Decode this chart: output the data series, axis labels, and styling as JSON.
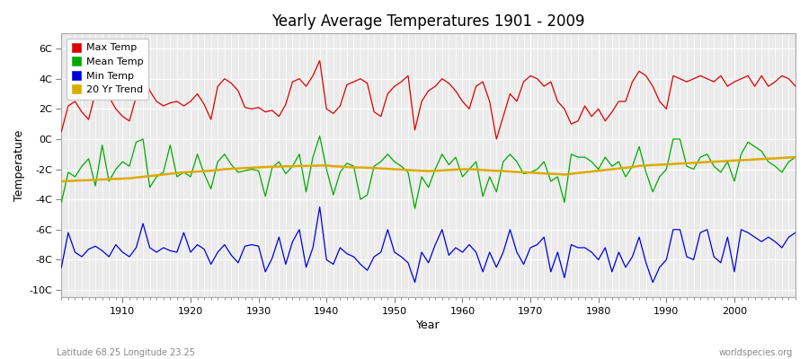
{
  "title": "Yearly Average Temperatures 1901 - 2009",
  "xlabel": "Year",
  "ylabel": "Temperature",
  "footnote_left": "Latitude 68.25 Longitude 23.25",
  "footnote_right": "worldspecies.org",
  "ylim": [
    -10.5,
    7
  ],
  "yticks": [
    -10,
    -8,
    -6,
    -4,
    -2,
    0,
    2,
    4,
    6
  ],
  "ytick_labels": [
    "-10C",
    "-8C",
    "-6C",
    "-4C",
    "-2C",
    "0C",
    "2C",
    "4C",
    "6C"
  ],
  "xstart": 1901,
  "xend": 2009,
  "legend": {
    "Max Temp": "#dd0000",
    "Mean Temp": "#00aa00",
    "Min Temp": "#0000dd",
    "20 Yr Trend": "#ddaa00"
  },
  "background_color": "#ffffff",
  "plot_bg_color": "#ebebeb",
  "max_temp": [
    0.5,
    2.2,
    2.5,
    1.8,
    1.3,
    3.1,
    3.4,
    2.8,
    2.0,
    1.5,
    1.2,
    2.8,
    4.6,
    3.2,
    2.5,
    2.2,
    2.4,
    2.5,
    2.2,
    2.5,
    3.0,
    2.3,
    1.3,
    3.5,
    4.0,
    3.7,
    3.2,
    2.1,
    2.0,
    2.1,
    1.8,
    1.9,
    1.5,
    2.3,
    3.8,
    4.0,
    3.5,
    4.2,
    5.2,
    2.0,
    1.7,
    2.2,
    3.6,
    3.8,
    4.0,
    3.7,
    1.8,
    1.5,
    3.0,
    3.5,
    3.8,
    4.2,
    0.6,
    2.5,
    3.2,
    3.5,
    4.0,
    3.7,
    3.2,
    2.5,
    2.0,
    3.5,
    3.8,
    2.5,
    0.0,
    1.5,
    3.0,
    2.5,
    3.8,
    4.2,
    4.0,
    3.5,
    3.8,
    2.5,
    2.0,
    1.0,
    1.2,
    2.2,
    1.5,
    2.0,
    1.2,
    1.8,
    2.5,
    2.5,
    3.8,
    4.5,
    4.2,
    3.5,
    2.5,
    2.0,
    4.2,
    4.0,
    3.8,
    4.0,
    4.2,
    4.0,
    3.8,
    4.2,
    3.5,
    3.8,
    4.0,
    4.2,
    3.5,
    4.2,
    3.5,
    3.8,
    4.2,
    4.0,
    3.5
  ],
  "mean_temp": [
    -4.2,
    -2.2,
    -2.5,
    -1.8,
    -1.3,
    -3.1,
    -0.4,
    -2.8,
    -2.0,
    -1.5,
    -1.8,
    -0.2,
    0.0,
    -3.2,
    -2.5,
    -2.2,
    -0.4,
    -2.5,
    -2.2,
    -2.5,
    -1.0,
    -2.3,
    -3.3,
    -1.5,
    -1.0,
    -1.7,
    -2.2,
    -2.1,
    -2.0,
    -2.1,
    -3.8,
    -1.9,
    -1.5,
    -2.3,
    -1.8,
    -1.0,
    -3.5,
    -1.2,
    0.2,
    -2.0,
    -3.7,
    -2.2,
    -1.6,
    -1.8,
    -4.0,
    -3.7,
    -1.8,
    -1.5,
    -1.0,
    -1.5,
    -1.8,
    -2.2,
    -4.6,
    -2.5,
    -3.2,
    -2.0,
    -1.0,
    -1.7,
    -1.2,
    -2.5,
    -2.0,
    -1.5,
    -3.8,
    -2.5,
    -3.5,
    -1.5,
    -1.0,
    -1.5,
    -2.3,
    -2.2,
    -2.0,
    -1.5,
    -2.8,
    -2.5,
    -4.2,
    -1.0,
    -1.2,
    -1.2,
    -1.5,
    -2.0,
    -1.2,
    -1.8,
    -1.5,
    -2.5,
    -1.8,
    -0.5,
    -2.2,
    -3.5,
    -2.5,
    -2.0,
    0.0,
    0.0,
    -1.8,
    -2.0,
    -1.2,
    -1.0,
    -1.8,
    -2.2,
    -1.5,
    -2.8,
    -1.0,
    -0.2,
    -0.5,
    -0.8,
    -1.5,
    -1.8,
    -2.2,
    -1.5,
    -1.2
  ],
  "min_temp": [
    -8.5,
    -6.2,
    -7.5,
    -7.8,
    -7.3,
    -7.1,
    -7.4,
    -7.8,
    -7.0,
    -7.5,
    -7.8,
    -7.2,
    -5.6,
    -7.2,
    -7.5,
    -7.2,
    -7.4,
    -7.5,
    -6.2,
    -7.5,
    -7.0,
    -7.3,
    -8.3,
    -7.5,
    -7.0,
    -7.7,
    -8.2,
    -7.1,
    -7.0,
    -7.1,
    -8.8,
    -7.9,
    -6.5,
    -8.3,
    -6.8,
    -6.0,
    -8.5,
    -7.2,
    -4.5,
    -8.0,
    -8.3,
    -7.2,
    -7.6,
    -7.8,
    -8.3,
    -8.7,
    -7.8,
    -7.5,
    -6.0,
    -7.5,
    -7.8,
    -8.2,
    -9.5,
    -7.5,
    -8.2,
    -7.0,
    -6.0,
    -7.7,
    -7.2,
    -7.5,
    -7.0,
    -7.5,
    -8.8,
    -7.5,
    -8.5,
    -7.5,
    -6.0,
    -7.5,
    -8.3,
    -7.2,
    -7.0,
    -6.5,
    -8.8,
    -7.5,
    -9.2,
    -7.0,
    -7.2,
    -7.2,
    -7.5,
    -8.0,
    -7.2,
    -8.8,
    -7.5,
    -8.5,
    -7.8,
    -6.5,
    -8.2,
    -9.5,
    -8.5,
    -8.0,
    -6.0,
    -6.0,
    -7.8,
    -8.0,
    -6.2,
    -6.0,
    -7.8,
    -8.2,
    -6.5,
    -8.8,
    -6.0,
    -6.2,
    -6.5,
    -6.8,
    -6.5,
    -6.8,
    -7.2,
    -6.5,
    -6.2
  ],
  "trend_20yr": [
    -2.8,
    -2.78,
    -2.76,
    -2.74,
    -2.72,
    -2.7,
    -2.68,
    -2.66,
    -2.64,
    -2.62,
    -2.6,
    -2.55,
    -2.5,
    -2.45,
    -2.4,
    -2.35,
    -2.3,
    -2.25,
    -2.2,
    -2.18,
    -2.15,
    -2.12,
    -2.1,
    -2.05,
    -2.0,
    -1.97,
    -1.95,
    -1.92,
    -1.9,
    -1.88,
    -1.85,
    -1.83,
    -1.82,
    -1.8,
    -1.8,
    -1.78,
    -1.78,
    -1.77,
    -1.75,
    -1.75,
    -1.8,
    -1.82,
    -1.85,
    -1.87,
    -1.88,
    -1.9,
    -1.92,
    -1.95,
    -1.97,
    -2.0,
    -2.02,
    -2.05,
    -2.08,
    -2.1,
    -2.12,
    -2.1,
    -2.08,
    -2.05,
    -2.02,
    -2.0,
    -2.0,
    -2.02,
    -2.05,
    -2.08,
    -2.1,
    -2.12,
    -2.15,
    -2.18,
    -2.2,
    -2.22,
    -2.25,
    -2.28,
    -2.3,
    -2.32,
    -2.35,
    -2.3,
    -2.25,
    -2.2,
    -2.15,
    -2.1,
    -2.05,
    -2.0,
    -1.95,
    -1.9,
    -1.85,
    -1.78,
    -1.75,
    -1.72,
    -1.7,
    -1.68,
    -1.65,
    -1.62,
    -1.6,
    -1.58,
    -1.55,
    -1.52,
    -1.5,
    -1.48,
    -1.45,
    -1.42,
    -1.4,
    -1.38,
    -1.35,
    -1.32,
    -1.3,
    -1.28,
    -1.25,
    -1.22,
    -1.2
  ]
}
